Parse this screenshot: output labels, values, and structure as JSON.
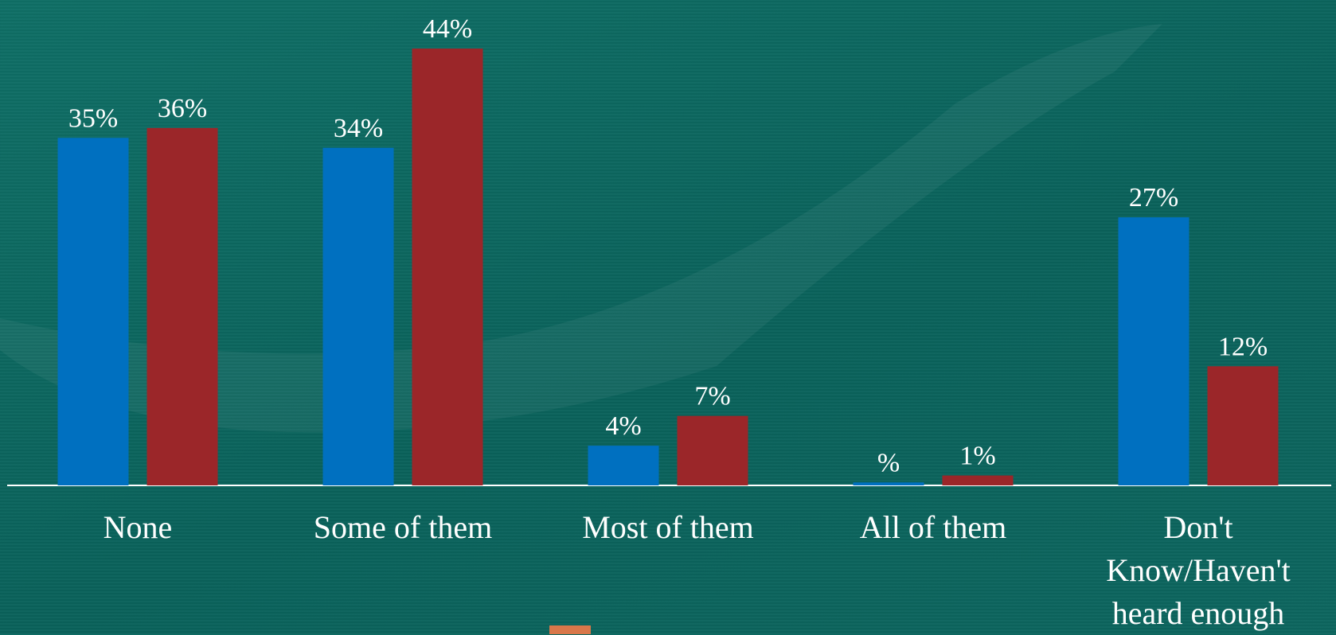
{
  "chart_data": {
    "type": "bar",
    "categories": [
      "None",
      "Some of them",
      "Most of them",
      "All of them",
      "Don't Know/Haven't heard enough"
    ],
    "series": [
      {
        "color": "#0070c0",
        "values": [
          35,
          34,
          4,
          0.3,
          27
        ],
        "value_labels": [
          "35%",
          "34%",
          "4%",
          "%",
          "27%"
        ]
      },
      {
        "color": "#9b2629",
        "values": [
          36,
          44,
          7,
          1,
          12
        ],
        "value_labels": [
          "36%",
          "44%",
          "7%",
          "1%",
          "12%"
        ]
      }
    ]
  }
}
